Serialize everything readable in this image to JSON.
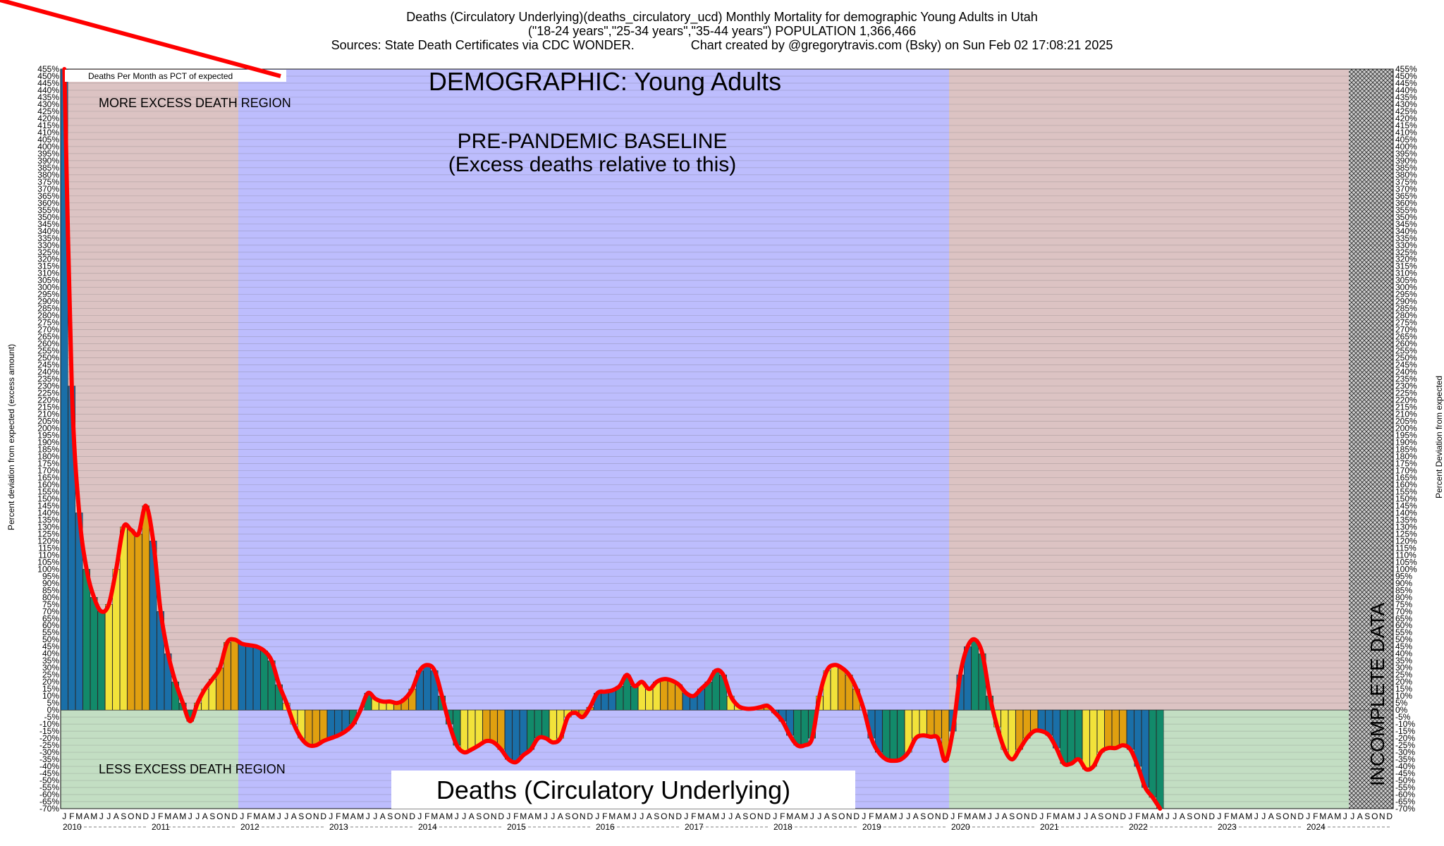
{
  "header": {
    "line1": "Deaths (Circulatory Underlying)(deaths_circulatory_ucd) Monthly Mortality for demographic Young Adults in Utah",
    "line2": "(\"18-24 years\",\"25-34 years\",\"35-44 years\") POPULATION 1,366,466",
    "line3": "Sources: State Death Certificates via CDC WONDER.                Chart created by @gregorytravis.com (Bsky) on Sun Feb 02 17:08:21 2025"
  },
  "chart_data": {
    "type": "bar",
    "title": "DEMOGRAPHIC: Young Adults",
    "bottom_label": "Deaths (Circulatory Underlying)",
    "ylabel_left": "Percent deviation from expected (excess amount)",
    "ylabel_right": "Percent Deviation from expected",
    "ylim": [
      -70,
      455
    ],
    "ytick_step": 5,
    "legend": "Deaths Per Month as PCT of expected",
    "legend_position": "top-left",
    "annotations": {
      "more_excess": "MORE EXCESS DEATH REGION",
      "less_excess": "LESS EXCESS DEATH REGION",
      "baseline_1": "PRE-PANDEMIC BASELINE",
      "baseline_2": "(Excess deaths relative to this)",
      "incomplete": "INCOMPLETE DATA"
    },
    "month_letters": [
      "J",
      "F",
      "M",
      "A",
      "M",
      "J",
      "J",
      "A",
      "S",
      "O",
      "N",
      "D"
    ],
    "years": [
      "2010",
      "2011",
      "2012",
      "2013",
      "2014",
      "2015",
      "2016",
      "2017",
      "2018",
      "2019",
      "2020",
      "2021",
      "2022",
      "2023",
      "2024"
    ],
    "baseline_years": [
      "2012",
      "2013",
      "2014",
      "2015",
      "2016",
      "2017",
      "2018",
      "2019"
    ],
    "incomplete_from_month_index": 174,
    "values": [
      455,
      230,
      140,
      100,
      80,
      70,
      75,
      100,
      130,
      128,
      125,
      145,
      120,
      70,
      40,
      20,
      5,
      -8,
      5,
      15,
      22,
      30,
      48,
      50,
      47,
      46,
      45,
      42,
      35,
      18,
      5,
      -10,
      -20,
      -25,
      -25,
      -22,
      -20,
      -18,
      -15,
      -10,
      0,
      12,
      8,
      6,
      6,
      5,
      8,
      15,
      28,
      32,
      28,
      10,
      -10,
      -25,
      -30,
      -28,
      -25,
      -22,
      -23,
      -28,
      -35,
      -37,
      -32,
      -28,
      -20,
      -20,
      -23,
      -20,
      -5,
      -2,
      -5,
      2,
      12,
      13,
      14,
      17,
      25,
      17,
      20,
      15,
      20,
      22,
      21,
      18,
      12,
      10,
      15,
      20,
      28,
      25,
      10,
      3,
      1,
      1,
      2,
      3,
      -2,
      -8,
      -18,
      -25,
      -25,
      -20,
      10,
      28,
      32,
      30,
      25,
      15,
      0,
      -20,
      -30,
      -35,
      -36,
      -35,
      -30,
      -20,
      -18,
      -19,
      -20,
      -36,
      -15,
      25,
      45,
      50,
      40,
      10,
      -12,
      -28,
      -35,
      -28,
      -20,
      -15,
      -15,
      -18,
      -27,
      -38,
      -38,
      -35,
      -42,
      -40,
      -30,
      -27,
      -27,
      -25,
      -28,
      -40,
      -55,
      -62,
      -70
    ]
  }
}
